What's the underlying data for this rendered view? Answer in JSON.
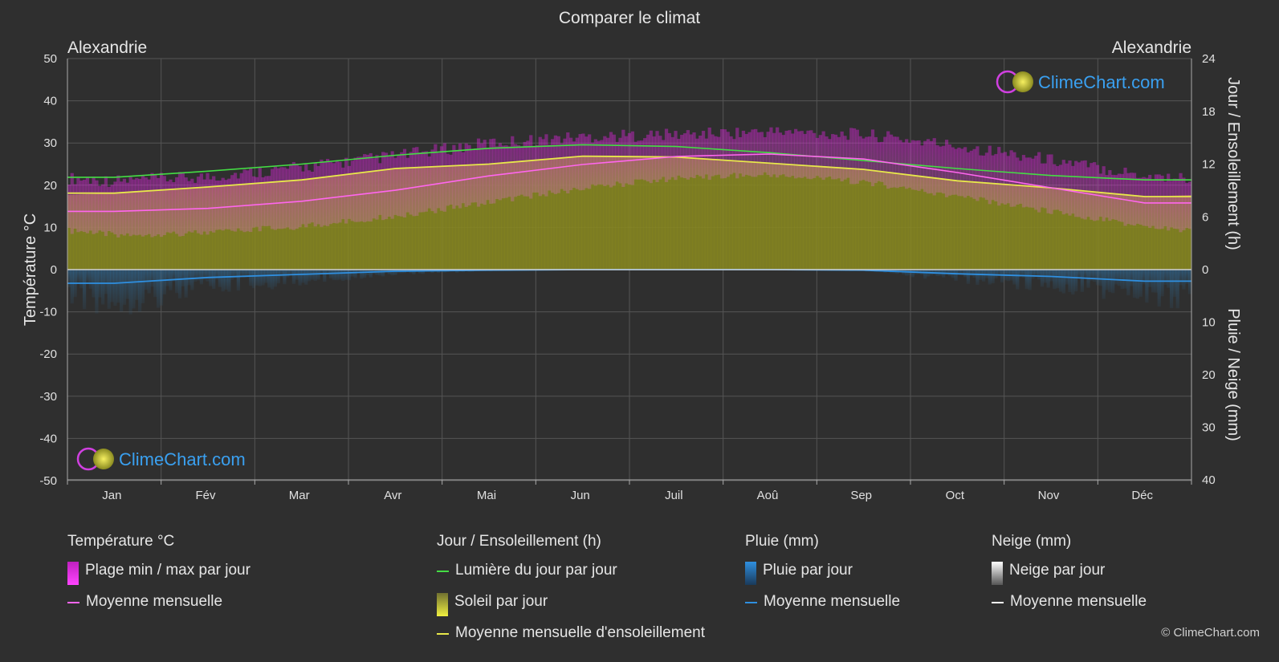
{
  "chart_data": {
    "type": "area",
    "title": "Comparer le climat",
    "location_left": "Alexandrie",
    "location_right": "Alexandrie",
    "ylabel_left": "Température °C",
    "ylabel_right_top": "Jour / Ensoleillement (h)",
    "ylabel_right_bottom": "Pluie / Neige (mm)",
    "ylim_left": [
      -50,
      50
    ],
    "yticks_left": [
      "50",
      "40",
      "30",
      "20",
      "10",
      "0",
      "-10",
      "-20",
      "-30",
      "-40",
      "-50"
    ],
    "yticks_right_top": [
      "24",
      "18",
      "12",
      "6",
      "0"
    ],
    "yticks_right_bottom": [
      "10",
      "20",
      "30",
      "40"
    ],
    "months": [
      "Jan",
      "Fév",
      "Mar",
      "Avr",
      "Mai",
      "Jun",
      "Juil",
      "Aoû",
      "Sep",
      "Oct",
      "Nov",
      "Déc"
    ],
    "series": [
      {
        "key": "temp_mean",
        "name": "Moyenne mensuelle",
        "unit": "°C",
        "color": "#ff66ee",
        "values": [
          13.8,
          14.5,
          16.2,
          18.8,
          22.2,
          24.9,
          26.8,
          27.4,
          26.2,
          23.0,
          19.4,
          15.8
        ]
      },
      {
        "key": "temp_max",
        "unit": "°C",
        "values": [
          19.5,
          20.5,
          22.8,
          25.5,
          28.5,
          30.0,
          30.5,
          31.2,
          30.5,
          27.8,
          24.5,
          20.8
        ]
      },
      {
        "key": "temp_min",
        "unit": "°C",
        "values": [
          9.0,
          9.5,
          11.0,
          13.5,
          16.8,
          20.0,
          22.5,
          23.2,
          21.5,
          18.0,
          14.5,
          10.8
        ]
      },
      {
        "key": "daylight",
        "name": "Lumière du jour par jour",
        "unit": "h",
        "color": "#44dd44",
        "values": [
          10.5,
          11.2,
          12.0,
          13.0,
          13.8,
          14.2,
          14.0,
          13.3,
          12.4,
          11.5,
          10.7,
          10.2
        ]
      },
      {
        "key": "sunshine",
        "name": "Moyenne mensuelle d'ensoleillement",
        "unit": "h",
        "color": "#e8e84a",
        "values": [
          8.7,
          9.4,
          10.2,
          11.5,
          12.0,
          12.9,
          12.8,
          12.1,
          11.4,
          10.1,
          9.3,
          8.3
        ]
      },
      {
        "key": "rain_mean",
        "name": "Moyenne mensuelle",
        "unit": "mm",
        "color": "#2f8fe0",
        "values": [
          2.6,
          1.5,
          0.9,
          0.3,
          0.1,
          0.0,
          0.0,
          0.0,
          0.1,
          0.8,
          1.3,
          2.2
        ]
      }
    ],
    "grid": true
  },
  "legend": {
    "groups": [
      {
        "title": "Température °C",
        "items": [
          {
            "label": "Plage min / max par jour",
            "swatch": "box",
            "color": "#e020e0"
          },
          {
            "label": "Moyenne mensuelle",
            "swatch": "line",
            "color": "#ff66ee"
          }
        ]
      },
      {
        "title": "Jour / Ensoleillement (h)",
        "items": [
          {
            "label": "Lumière du jour par jour",
            "swatch": "line",
            "color": "#44dd44"
          },
          {
            "label": "Soleil par jour",
            "swatch": "box",
            "color": "#c8c82a"
          },
          {
            "label": "Moyenne mensuelle d'ensoleillement",
            "swatch": "line",
            "color": "#e8e84a"
          }
        ]
      },
      {
        "title": "Pluie (mm)",
        "items": [
          {
            "label": "Pluie par jour",
            "swatch": "box",
            "color": "#2f8fe0"
          },
          {
            "label": "Moyenne mensuelle",
            "swatch": "line",
            "color": "#2f8fe0"
          }
        ]
      },
      {
        "title": "Neige (mm)",
        "items": [
          {
            "label": "Neige par jour",
            "swatch": "box",
            "color": "#dddddd"
          },
          {
            "label": "Moyenne mensuelle",
            "swatch": "line",
            "color": "#ffffff"
          }
        ]
      }
    ]
  },
  "watermark": "ClimeChart.com",
  "copyright": "© ClimeChart.com"
}
